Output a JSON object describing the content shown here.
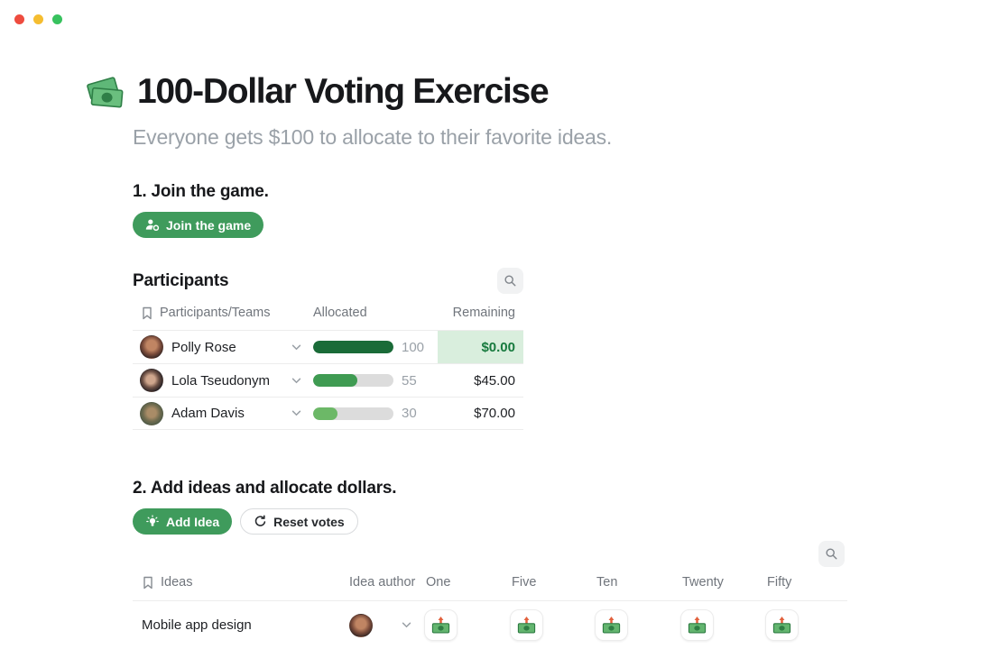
{
  "window": {
    "lights": [
      {
        "name": "close",
        "color": "#ee4c3f"
      },
      {
        "name": "minimize",
        "color": "#f5bd30"
      },
      {
        "name": "zoom",
        "color": "#38c25e"
      }
    ]
  },
  "page": {
    "title": "100-Dollar Voting Exercise",
    "title_icon": "money-banknotes",
    "subtitle": "Everyone gets $100 to allocate to their favorite ideas."
  },
  "join_section": {
    "heading": "1. Join the game.",
    "join_button_label": "Join the game"
  },
  "participants": {
    "heading": "Participants",
    "table": {
      "columns": [
        "Participants/Teams",
        "Allocated",
        "Remaining"
      ],
      "rows": [
        {
          "name": "Polly Rose",
          "allocated": 100,
          "remaining": "$0.00",
          "bar_color": "#1a6b38",
          "highlight": true
        },
        {
          "name": "Lola Tseudonym",
          "allocated": 55,
          "remaining": "$45.00",
          "bar_color": "#3f9b52",
          "highlight": false
        },
        {
          "name": "Adam Davis",
          "allocated": 30,
          "remaining": "$70.00",
          "bar_color": "#6cb867",
          "highlight": false
        }
      ]
    }
  },
  "ideas_section": {
    "heading": "2. Add ideas and allocate dollars.",
    "add_idea_button_label": "Add Idea",
    "reset_votes_button_label": "Reset votes"
  },
  "ideas": {
    "table": {
      "columns": [
        "Ideas",
        "Idea author",
        "One",
        "Five",
        "Ten",
        "Twenty",
        "Fifty"
      ],
      "rows": [
        {
          "idea": "Mobile app design",
          "author": "Polly Rose",
          "vote_options": [
            "One",
            "Five",
            "Ten",
            "Twenty",
            "Fifty"
          ]
        }
      ]
    }
  },
  "colors": {
    "accent_green": "#3f9b5c",
    "highlight_cell_bg": "#d9eedd",
    "highlight_cell_text": "#177a3e",
    "bar_track": "#dcdcdc",
    "muted_text": "#9aa1a8",
    "header_text": "#70757c"
  }
}
